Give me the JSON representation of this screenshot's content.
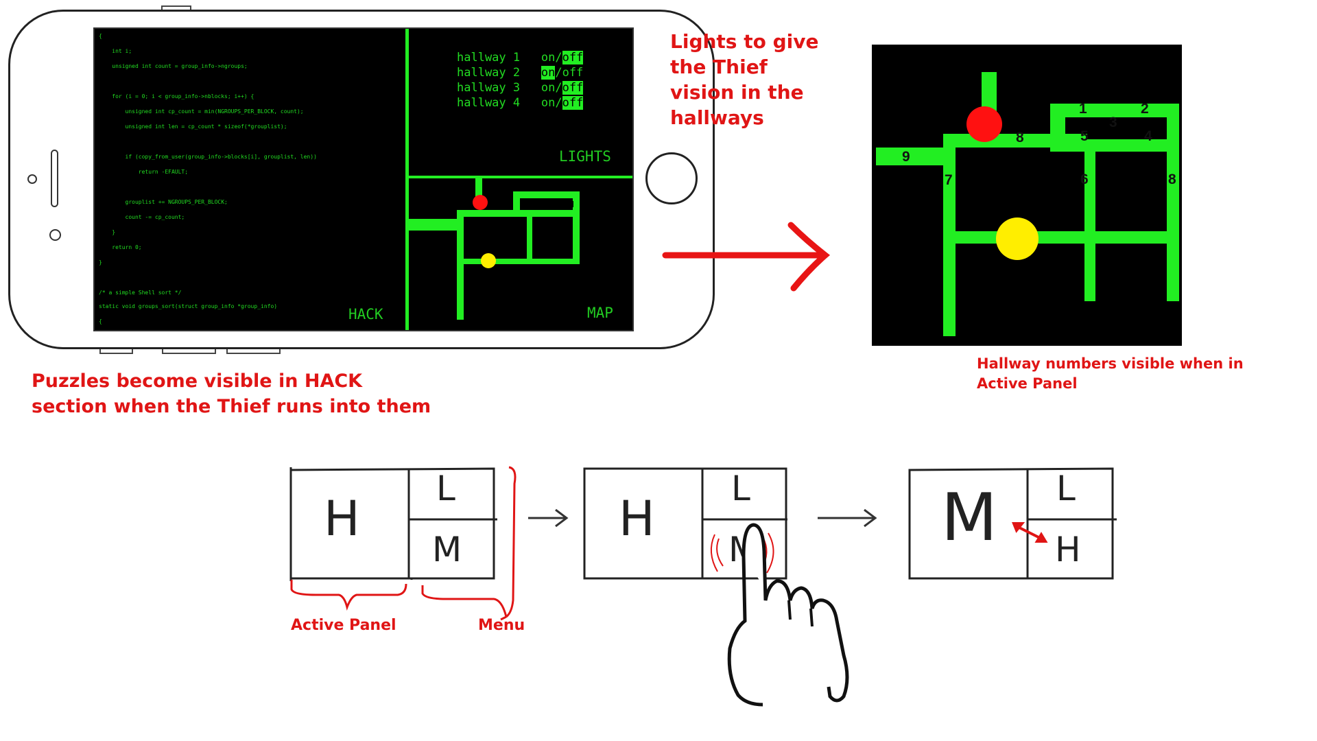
{
  "phone": {
    "code_lines": [
      "{",
      "    int i;",
      "    unsigned int count = group_info->ngroups;",
      "",
      "    for (i = 0; i < group_info->nblocks; i++) {",
      "        unsigned int cp_count = min(NGROUPS_PER_BLOCK, count);",
      "        unsigned int len = cp_count * sizeof(*grouplist);",
      "",
      "        if (copy_from_user(group_info->blocks[i], grouplist, len))",
      "            return -EFAULT;",
      "",
      "        grouplist += NGROUPS_PER_BLOCK;",
      "        count -= cp_count;",
      "    }",
      "    return 0;",
      "}",
      "",
      "/* a simple Shell sort */",
      "static void groups_sort(struct group_info *group_info)",
      "{"
    ],
    "hack_label": "HACK",
    "lights_label": "LIGHTS",
    "map_label": "MAP",
    "lights": [
      {
        "name": "hallway 1",
        "on": "on",
        "slash": "/",
        "off": "off",
        "state": "off"
      },
      {
        "name": "hallway 2",
        "on": "on",
        "slash": "/",
        "off": "off",
        "state": "on"
      },
      {
        "name": "hallway 3",
        "on": "on",
        "slash": "/",
        "off": "off",
        "state": "off"
      },
      {
        "name": "hallway 4",
        "on": "on",
        "slash": "/",
        "off": "off",
        "state": "off"
      }
    ]
  },
  "annotations": {
    "lights_note": [
      "Lights to give",
      "the Thief",
      "vision in the",
      "hallways"
    ],
    "puzzles_note": [
      "Puzzles become visible in HACK",
      "section when the Thief runs into them"
    ],
    "hallway_note": [
      "Hallway numbers visible when in",
      "Active Panel"
    ],
    "active_panel": "Active Panel",
    "menu": "Menu"
  },
  "big_map": {
    "numbers": [
      "1",
      "2",
      "3",
      "4",
      "5",
      "6",
      "7",
      "8",
      "8",
      "9"
    ]
  },
  "sketch": {
    "step1": {
      "main": "H",
      "top": "L",
      "bottom": "M"
    },
    "step2": {
      "main": "H",
      "top": "L",
      "bottom": "M"
    },
    "step3": {
      "main": "M",
      "top": "L",
      "bottom": "H"
    }
  },
  "colors": {
    "screen_bg": "#000000",
    "terminal_green": "#22ee22",
    "annotation_red": "#e01515",
    "thief_dot": "#ff1111",
    "guard_dot": "#ffee00"
  }
}
